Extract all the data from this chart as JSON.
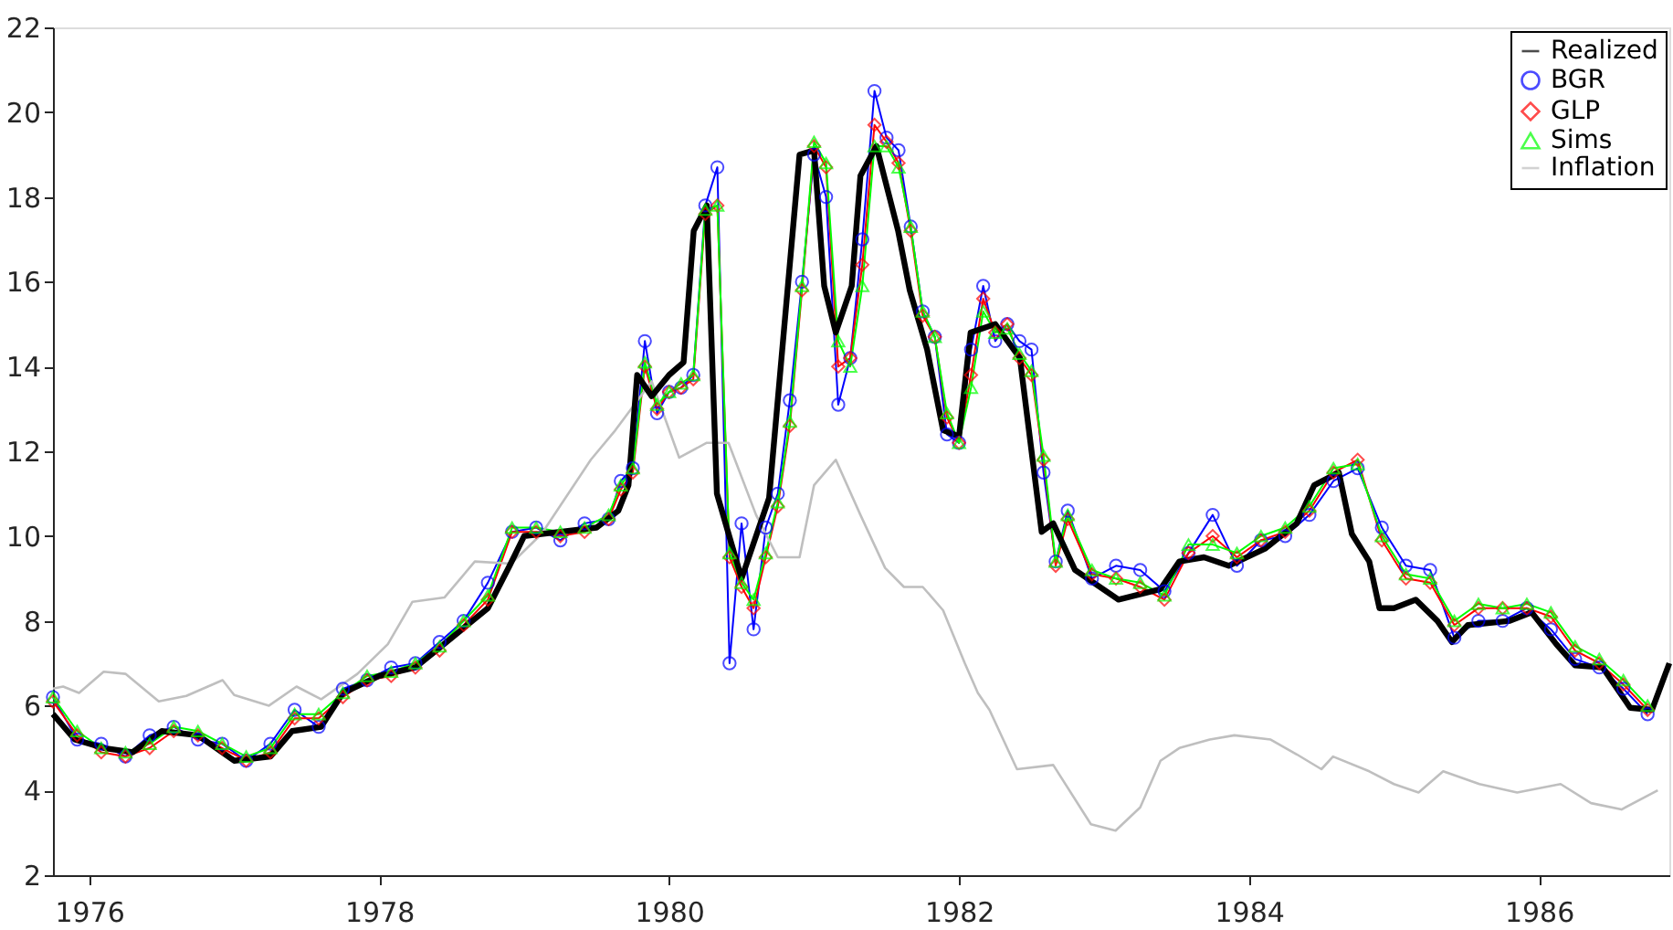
{
  "chart_data": {
    "type": "line",
    "xlim": [
      1975.75,
      1986.9
    ],
    "xticks": [
      1976,
      1978,
      1980,
      1982,
      1984,
      1986
    ],
    "ylim": [
      2,
      22
    ],
    "yticks": [
      2,
      4,
      6,
      8,
      10,
      12,
      14,
      16,
      18,
      20,
      22
    ],
    "grid": false,
    "legend": "top right",
    "line_style": "solid",
    "x": [
      1975.75,
      1975.917,
      1976.083,
      1976.25,
      1976.417,
      1976.583,
      1976.75,
      1976.917,
      1977.083,
      1977.25,
      1977.417,
      1977.583,
      1977.75,
      1977.917,
      1978.083,
      1978.25,
      1978.417,
      1978.583,
      1978.75,
      1978.917,
      1979.083,
      1979.25,
      1979.417,
      1979.583,
      1979.667,
      1979.75,
      1979.833,
      1979.917,
      1980.0,
      1980.083,
      1980.167,
      1980.25,
      1980.333,
      1980.417,
      1980.5,
      1980.583,
      1980.667,
      1980.75,
      1980.833,
      1980.917,
      1981.0,
      1981.083,
      1981.167,
      1981.25,
      1981.333,
      1981.417,
      1981.5,
      1981.583,
      1981.667,
      1981.75,
      1981.833,
      1981.917,
      1982.0,
      1982.083,
      1982.167,
      1982.25,
      1982.333,
      1982.417,
      1982.5,
      1982.583,
      1982.667,
      1982.75,
      1982.917,
      1983.083,
      1983.25,
      1983.417,
      1983.583,
      1983.75,
      1983.917,
      1984.083,
      1984.25,
      1984.417,
      1984.583,
      1984.75,
      1984.917,
      1985.083,
      1985.25,
      1985.417,
      1985.583,
      1985.75,
      1985.917,
      1986.083,
      1986.25,
      1986.417,
      1986.583,
      1986.75
    ],
    "series": [
      {
        "name": "Realized",
        "color": "#000000",
        "marker": "none",
        "x": [
          1975.75,
          1975.9,
          1976.1,
          1976.3,
          1976.5,
          1976.75,
          1977.0,
          1977.25,
          1977.4,
          1977.6,
          1977.75,
          1978.0,
          1978.25,
          1978.5,
          1978.75,
          1978.9,
          1979.0,
          1979.25,
          1979.5,
          1979.65,
          1979.72,
          1979.78,
          1979.88,
          1980.0,
          1980.1,
          1980.17,
          1980.26,
          1980.33,
          1980.5,
          1980.69,
          1980.9,
          1981.0,
          1981.07,
          1981.15,
          1981.26,
          1981.32,
          1981.43,
          1981.58,
          1981.66,
          1981.78,
          1981.89,
          1982.0,
          1982.08,
          1982.25,
          1982.42,
          1982.57,
          1982.65,
          1982.8,
          1983.1,
          1983.39,
          1983.52,
          1983.69,
          1983.86,
          1984.11,
          1984.33,
          1984.45,
          1984.62,
          1984.71,
          1984.83,
          1984.9,
          1985.0,
          1985.15,
          1985.3,
          1985.4,
          1985.51,
          1985.8,
          1985.95,
          1986.12,
          1986.25,
          1986.44,
          1986.63,
          1986.78,
          1986.9
        ],
        "values": [
          5.8,
          5.2,
          5.0,
          4.9,
          5.4,
          5.3,
          4.7,
          4.8,
          5.4,
          5.5,
          6.3,
          6.7,
          6.9,
          7.6,
          8.3,
          9.3,
          10.0,
          10.1,
          10.2,
          10.6,
          11.2,
          13.8,
          13.3,
          13.8,
          14.1,
          17.2,
          17.8,
          11.0,
          9.0,
          10.9,
          19.0,
          19.1,
          15.9,
          14.8,
          15.9,
          18.5,
          19.2,
          17.2,
          15.8,
          14.4,
          12.5,
          12.35,
          14.8,
          15.0,
          14.2,
          10.1,
          10.3,
          9.2,
          8.5,
          8.75,
          9.4,
          9.5,
          9.3,
          9.7,
          10.3,
          11.2,
          11.5,
          10.05,
          9.4,
          8.3,
          8.3,
          8.5,
          8.0,
          7.5,
          7.9,
          8.0,
          8.2,
          7.45,
          6.95,
          6.9,
          5.95,
          5.9,
          7.0
        ]
      },
      {
        "name": "BGR",
        "color": "#0000ff",
        "marker": "circle",
        "values": [
          6.2,
          5.2,
          5.1,
          4.8,
          5.3,
          5.5,
          5.2,
          5.1,
          4.7,
          5.1,
          5.9,
          5.5,
          6.4,
          6.6,
          6.9,
          7.0,
          7.5,
          8.0,
          8.9,
          10.1,
          10.2,
          9.9,
          10.3,
          10.4,
          11.3,
          11.6,
          14.6,
          12.9,
          13.4,
          13.5,
          13.8,
          17.8,
          18.7,
          7.0,
          10.3,
          7.8,
          10.2,
          11.0,
          13.2,
          16.0,
          19.0,
          18.0,
          13.1,
          14.2,
          17.0,
          20.5,
          19.4,
          19.1,
          17.3,
          15.3,
          14.7,
          12.4,
          12.2,
          14.4,
          15.9,
          14.6,
          15.0,
          14.6,
          14.4,
          11.5,
          9.4,
          10.6,
          9.0,
          9.3,
          9.2,
          8.7,
          9.6,
          10.5,
          9.3,
          9.9,
          10.0,
          10.5,
          11.3,
          11.6,
          10.2,
          9.3,
          9.2,
          7.6,
          8.0,
          8.0,
          8.3,
          7.8,
          7.1,
          6.9,
          6.4,
          5.8
        ]
      },
      {
        "name": "GLP",
        "color": "#ff0000",
        "marker": "diamond",
        "values": [
          6.1,
          5.3,
          4.9,
          4.8,
          5.0,
          5.4,
          5.3,
          5.0,
          4.7,
          4.9,
          5.7,
          5.7,
          6.2,
          6.6,
          6.7,
          6.9,
          7.3,
          7.9,
          8.5,
          10.1,
          10.1,
          10.0,
          10.1,
          10.4,
          11.1,
          11.5,
          14.0,
          13.0,
          13.4,
          13.5,
          13.7,
          17.6,
          17.8,
          9.5,
          8.8,
          8.3,
          9.5,
          10.7,
          12.6,
          15.8,
          19.2,
          18.7,
          14.0,
          14.2,
          16.4,
          19.7,
          19.3,
          18.8,
          17.2,
          15.2,
          14.7,
          12.8,
          12.2,
          13.8,
          15.6,
          14.8,
          15.0,
          14.2,
          13.8,
          11.8,
          9.3,
          10.4,
          9.1,
          9.0,
          8.8,
          8.5,
          9.6,
          10.0,
          9.5,
          9.9,
          10.1,
          10.6,
          11.5,
          11.8,
          9.9,
          9.0,
          8.9,
          7.9,
          8.3,
          8.3,
          8.3,
          8.1,
          7.3,
          7.0,
          6.5,
          5.9
        ]
      },
      {
        "name": "Sims",
        "color": "#00ff00",
        "marker": "triangle",
        "values": [
          6.2,
          5.4,
          5.0,
          4.9,
          5.1,
          5.5,
          5.4,
          5.1,
          4.8,
          5.0,
          5.8,
          5.8,
          6.3,
          6.7,
          6.8,
          7.0,
          7.4,
          8.0,
          8.6,
          10.2,
          10.2,
          10.1,
          10.2,
          10.5,
          11.2,
          11.6,
          14.1,
          13.1,
          13.4,
          13.6,
          13.8,
          17.7,
          17.8,
          9.6,
          8.9,
          8.5,
          9.6,
          10.8,
          12.7,
          15.9,
          19.3,
          18.8,
          14.6,
          14.0,
          15.9,
          19.2,
          19.2,
          18.7,
          17.3,
          15.3,
          14.7,
          12.9,
          12.2,
          13.5,
          15.3,
          14.8,
          14.9,
          14.3,
          13.9,
          11.9,
          9.4,
          10.5,
          9.2,
          9.0,
          8.9,
          8.6,
          9.8,
          9.8,
          9.6,
          10.0,
          10.2,
          10.7,
          11.6,
          11.7,
          10.0,
          9.1,
          9.0,
          8.0,
          8.4,
          8.3,
          8.4,
          8.2,
          7.4,
          7.1,
          6.6,
          6.0
        ]
      },
      {
        "name": "Inflation",
        "color": "#bfbfbf",
        "marker": "none",
        "x": [
          1975.75,
          1975.82,
          1975.93,
          1976.1,
          1976.25,
          1976.48,
          1976.67,
          1976.92,
          1977.0,
          1977.24,
          1977.43,
          1977.6,
          1977.85,
          1978.06,
          1978.23,
          1978.45,
          1978.66,
          1978.91,
          1979.12,
          1979.46,
          1979.63,
          1979.88,
          1980.07,
          1980.26,
          1980.41,
          1980.6,
          1980.75,
          1980.9,
          1981.0,
          1981.15,
          1981.32,
          1981.49,
          1981.62,
          1981.75,
          1981.89,
          1982.04,
          1982.13,
          1982.21,
          1982.4,
          1982.65,
          1982.91,
          1983.08,
          1983.25,
          1983.39,
          1983.52,
          1983.73,
          1983.9,
          1984.15,
          1984.33,
          1984.5,
          1984.58,
          1984.83,
          1985.0,
          1985.17,
          1985.34,
          1985.59,
          1985.85,
          1986.15,
          1986.36,
          1986.57,
          1986.82
        ],
        "values": [
          6.4,
          6.45,
          6.3,
          6.8,
          6.75,
          6.1,
          6.23,
          6.6,
          6.25,
          6.0,
          6.45,
          6.15,
          6.75,
          7.45,
          8.45,
          8.55,
          9.4,
          9.35,
          10.05,
          11.8,
          12.5,
          13.65,
          11.85,
          12.2,
          12.2,
          10.5,
          9.5,
          9.5,
          11.2,
          11.8,
          10.5,
          9.25,
          8.8,
          8.8,
          8.25,
          7.0,
          6.3,
          5.9,
          4.5,
          4.6,
          3.2,
          3.05,
          3.6,
          4.7,
          5.0,
          5.2,
          5.3,
          5.2,
          4.85,
          4.5,
          4.8,
          4.45,
          4.15,
          3.95,
          4.45,
          4.15,
          3.95,
          4.15,
          3.7,
          3.55,
          4.0
        ]
      }
    ]
  }
}
